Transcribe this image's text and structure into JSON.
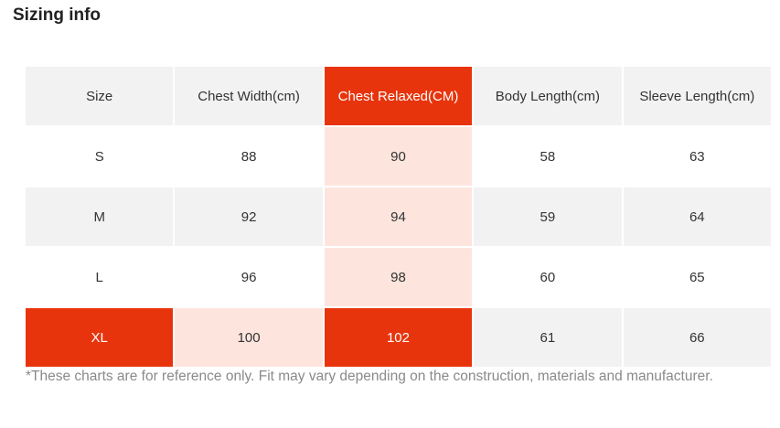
{
  "header": {
    "title": "Sizing info"
  },
  "table": {
    "headers": [
      "Size",
      "Chest Width(cm)",
      "Chest Relaxed(CM)",
      "Body Length(cm)",
      "Sleeve Length(cm)"
    ],
    "rows": [
      [
        "S",
        88,
        90,
        58,
        63
      ],
      [
        "M",
        92,
        94,
        59,
        64
      ],
      [
        "L",
        96,
        98,
        60,
        65
      ],
      [
        "XL",
        100,
        102,
        61,
        66
      ]
    ]
  },
  "footnote": "*These charts are for reference only. Fit may vary depending on the construction, materials and manufacturer."
}
